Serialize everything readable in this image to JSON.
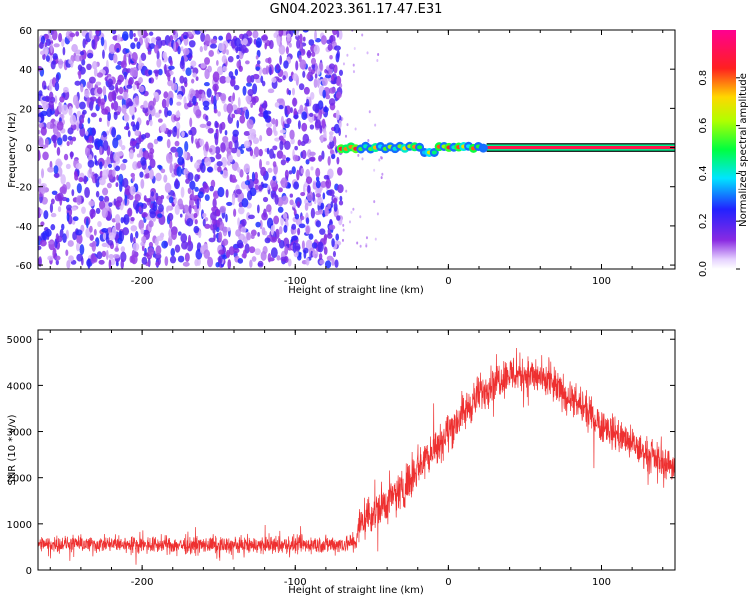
{
  "title": "GN04.2023.361.17.47.E31",
  "chart_data": [
    {
      "type": "heatmap",
      "title": "",
      "xlabel": "Height of straight line (km)",
      "ylabel": "Frequency (Hz)",
      "xlim": [
        -268,
        148
      ],
      "ylim": [
        -62,
        60
      ],
      "xticks": [
        -200,
        -100,
        0,
        100
      ],
      "yticks": [
        -60,
        -40,
        -20,
        0,
        20,
        40,
        60
      ],
      "colorbar": {
        "label": "Normalized spectral amplitude",
        "range": [
          0,
          1
        ],
        "ticks": [
          "0.0",
          "0.2",
          "0.4",
          "0.6",
          "0.8"
        ],
        "colormap": "gist_rainbow (white → violet → blue → cyan → green → yellow → red → magenta)"
      },
      "regions": [
        {
          "x_range": [
            -268,
            -70
          ],
          "frequency_range": [
            -60,
            60
          ],
          "description": "broadband noise, amplitude ~0.1–0.3 (purple/violet speckle)"
        },
        {
          "x_range": [
            -70,
            25
          ],
          "frequency_range": [
            -3,
            3
          ],
          "description": "narrow line near 0 Hz, patchy, amplitude up to ~0.9"
        },
        {
          "x_range": [
            25,
            148
          ],
          "frequency_range": [
            -2,
            2
          ],
          "description": "continuous narrow line near 0 Hz, peak amplitude ~0.95"
        }
      ]
    },
    {
      "type": "line",
      "title": "",
      "xlabel": "Height of straight line (km)",
      "ylabel": "SNR (10 * v/v)",
      "xlim": [
        -268,
        148
      ],
      "ylim": [
        0,
        5200
      ],
      "xticks": [
        -200,
        -100,
        0,
        100
      ],
      "yticks": [
        0,
        1000,
        2000,
        3000,
        4000,
        5000
      ],
      "color": "#ee3030",
      "envelope": {
        "x": [
          -268,
          -250,
          -200,
          -150,
          -100,
          -70,
          -60,
          -58,
          -50,
          -40,
          -30,
          -20,
          -10,
          0,
          10,
          20,
          30,
          40,
          50,
          60,
          70,
          80,
          90,
          100,
          110,
          120,
          130,
          140,
          148
        ],
        "y": [
          550,
          560,
          550,
          530,
          540,
          560,
          600,
          1000,
          1250,
          1450,
          1750,
          2250,
          2600,
          3000,
          3400,
          3800,
          4100,
          4250,
          4250,
          4150,
          3950,
          3700,
          3450,
          3150,
          2950,
          2700,
          2500,
          2350,
          2250
        ]
      },
      "noise_amplitude": {
        "x": [
          -268,
          -60,
          -58,
          0,
          50,
          148
        ],
        "y": [
          250,
          300,
          700,
          650,
          600,
          500
        ]
      }
    }
  ]
}
